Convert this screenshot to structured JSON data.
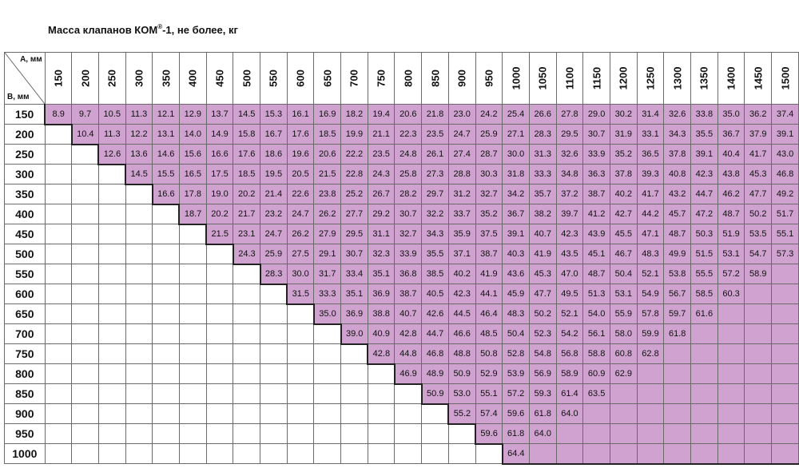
{
  "title": {
    "main": "Масса клапанов КОМ",
    "sup": "®",
    "rest": "-1, не более, кг"
  },
  "corner": {
    "a_label": "А, мм",
    "b_label": "В, мм"
  },
  "columns": [
    "150",
    "200",
    "250",
    "300",
    "350",
    "400",
    "450",
    "500",
    "550",
    "600",
    "650",
    "700",
    "750",
    "800",
    "850",
    "900",
    "950",
    "1000",
    "1050",
    "1100",
    "1150",
    "1200",
    "1250",
    "1300",
    "1350",
    "1400",
    "1450",
    "1500"
  ],
  "rows": [
    {
      "b": "150",
      "start": 0,
      "values": [
        "8.9",
        "9.7",
        "10.5",
        "11.3",
        "12.1",
        "12.9",
        "13.7",
        "14.5",
        "15.3",
        "16.1",
        "16.9",
        "18.2",
        "19.4",
        "20.6",
        "21.8",
        "23.0",
        "24.2",
        "25.4",
        "26.6",
        "27.8",
        "29.0",
        "30.2",
        "31.4",
        "32.6",
        "33.8",
        "35.0",
        "36.2",
        "37.4"
      ]
    },
    {
      "b": "200",
      "start": 1,
      "values": [
        "10.4",
        "11.3",
        "12.2",
        "13.1",
        "14.0",
        "14.9",
        "15.8",
        "16.7",
        "17.6",
        "18.5",
        "19.9",
        "21.1",
        "22.3",
        "23.5",
        "24.7",
        "25.9",
        "27.1",
        "28.3",
        "29.5",
        "30.7",
        "31.9",
        "33.1",
        "34.3",
        "35.5",
        "36.7",
        "37.9",
        "39.1"
      ]
    },
    {
      "b": "250",
      "start": 2,
      "values": [
        "12.6",
        "13.6",
        "14.6",
        "15.6",
        "16.6",
        "17.6",
        "18.6",
        "19.6",
        "20.6",
        "22.2",
        "23.5",
        "24.8",
        "26.1",
        "27.4",
        "28.7",
        "30.0",
        "31.3",
        "32.6",
        "33.9",
        "35.2",
        "36.5",
        "37.8",
        "39.1",
        "40.4",
        "41.7",
        "43.0"
      ]
    },
    {
      "b": "300",
      "start": 3,
      "values": [
        "14.5",
        "15.5",
        "16.5",
        "17.5",
        "18.5",
        "19.5",
        "20.5",
        "21.5",
        "22.8",
        "24.3",
        "25.8",
        "27.3",
        "28.8",
        "30.3",
        "31.8",
        "33.3",
        "34.8",
        "36.3",
        "37.8",
        "39.3",
        "40.8",
        "42.3",
        "43.8",
        "45.3",
        "46.8"
      ]
    },
    {
      "b": "350",
      "start": 4,
      "values": [
        "16.6",
        "17.8",
        "19.0",
        "20.2",
        "21.4",
        "22.6",
        "23.8",
        "25.2",
        "26.7",
        "28.2",
        "29.7",
        "31.2",
        "32.7",
        "34.2",
        "35.7",
        "37.2",
        "38.7",
        "40.2",
        "41.7",
        "43.2",
        "44.7",
        "46.2",
        "47.7",
        "49.2"
      ]
    },
    {
      "b": "400",
      "start": 5,
      "values": [
        "18.7",
        "20.2",
        "21.7",
        "23.2",
        "24.7",
        "26.2",
        "27.7",
        "29.2",
        "30.7",
        "32.2",
        "33.7",
        "35.2",
        "36.7",
        "38.2",
        "39.7",
        "41.2",
        "42.7",
        "44.2",
        "45.7",
        "47.2",
        "48.7",
        "50.2",
        "51.7"
      ]
    },
    {
      "b": "450",
      "start": 6,
      "values": [
        "21.5",
        "23.1",
        "24.7",
        "26.2",
        "27.9",
        "29.5",
        "31.1",
        "32.7",
        "34.3",
        "35.9",
        "37.5",
        "39.1",
        "40.7",
        "42.3",
        "43.9",
        "45.5",
        "47.1",
        "48.7",
        "50.3",
        "51.9",
        "53.5",
        "55.1"
      ]
    },
    {
      "b": "500",
      "start": 7,
      "values": [
        "24.3",
        "25.9",
        "27.5",
        "29.1",
        "30.7",
        "32.3",
        "33.9",
        "35.5",
        "37.1",
        "38.7",
        "40.3",
        "41.9",
        "43.5",
        "45.1",
        "46.7",
        "48.3",
        "49.9",
        "51.5",
        "53.1",
        "54.7",
        "57.3"
      ]
    },
    {
      "b": "550",
      "start": 8,
      "values": [
        "28.3",
        "30.0",
        "31.7",
        "33.4",
        "35.1",
        "36.8",
        "38.5",
        "40.2",
        "41.9",
        "43.6",
        "45.3",
        "47.0",
        "48.7",
        "50.4",
        "52.1",
        "53.8",
        "55.5",
        "57.2",
        "58.9"
      ]
    },
    {
      "b": "600",
      "start": 9,
      "values": [
        "31.5",
        "33.3",
        "35.1",
        "36.9",
        "38.7",
        "40.5",
        "42.3",
        "44.1",
        "45.9",
        "47.7",
        "49.5",
        "51.3",
        "53.1",
        "54.9",
        "56.7",
        "58.5",
        "60.3"
      ]
    },
    {
      "b": "650",
      "start": 10,
      "values": [
        "35.0",
        "36.9",
        "38.8",
        "40.7",
        "42.6",
        "44.5",
        "46.4",
        "48.3",
        "50.2",
        "52.1",
        "54.0",
        "55.9",
        "57.8",
        "59.7",
        "61.6"
      ]
    },
    {
      "b": "700",
      "start": 11,
      "values": [
        "39.0",
        "40.9",
        "42.8",
        "44.7",
        "46.6",
        "48.5",
        "50.4",
        "52.3",
        "54.2",
        "56.1",
        "58.0",
        "59.9",
        "61.8"
      ]
    },
    {
      "b": "750",
      "start": 12,
      "values": [
        "42.8",
        "44.8",
        "46.8",
        "48.8",
        "50.8",
        "52.8",
        "54.8",
        "56.8",
        "58.8",
        "60.8",
        "62.8"
      ]
    },
    {
      "b": "800",
      "start": 13,
      "values": [
        "46.9",
        "48.9",
        "50.9",
        "52.9",
        "53.9",
        "56.9",
        "58.9",
        "60.9",
        "62.9"
      ]
    },
    {
      "b": "850",
      "start": 14,
      "values": [
        "50.9",
        "53.0",
        "55.1",
        "57.2",
        "59.3",
        "61.4",
        "63.5"
      ]
    },
    {
      "b": "900",
      "start": 15,
      "values": [
        "55.2",
        "57.4",
        "59.6",
        "61.8",
        "64.0"
      ]
    },
    {
      "b": "950",
      "start": 16,
      "values": [
        "59.6",
        "61.8",
        "64.0"
      ]
    },
    {
      "b": "1000",
      "start": 17,
      "values": [
        "64.4"
      ]
    }
  ],
  "colors": {
    "filled": "#cfa2cf",
    "empty": "#ffffff",
    "grid": "#6a6a6a",
    "staircase": "#222222"
  }
}
